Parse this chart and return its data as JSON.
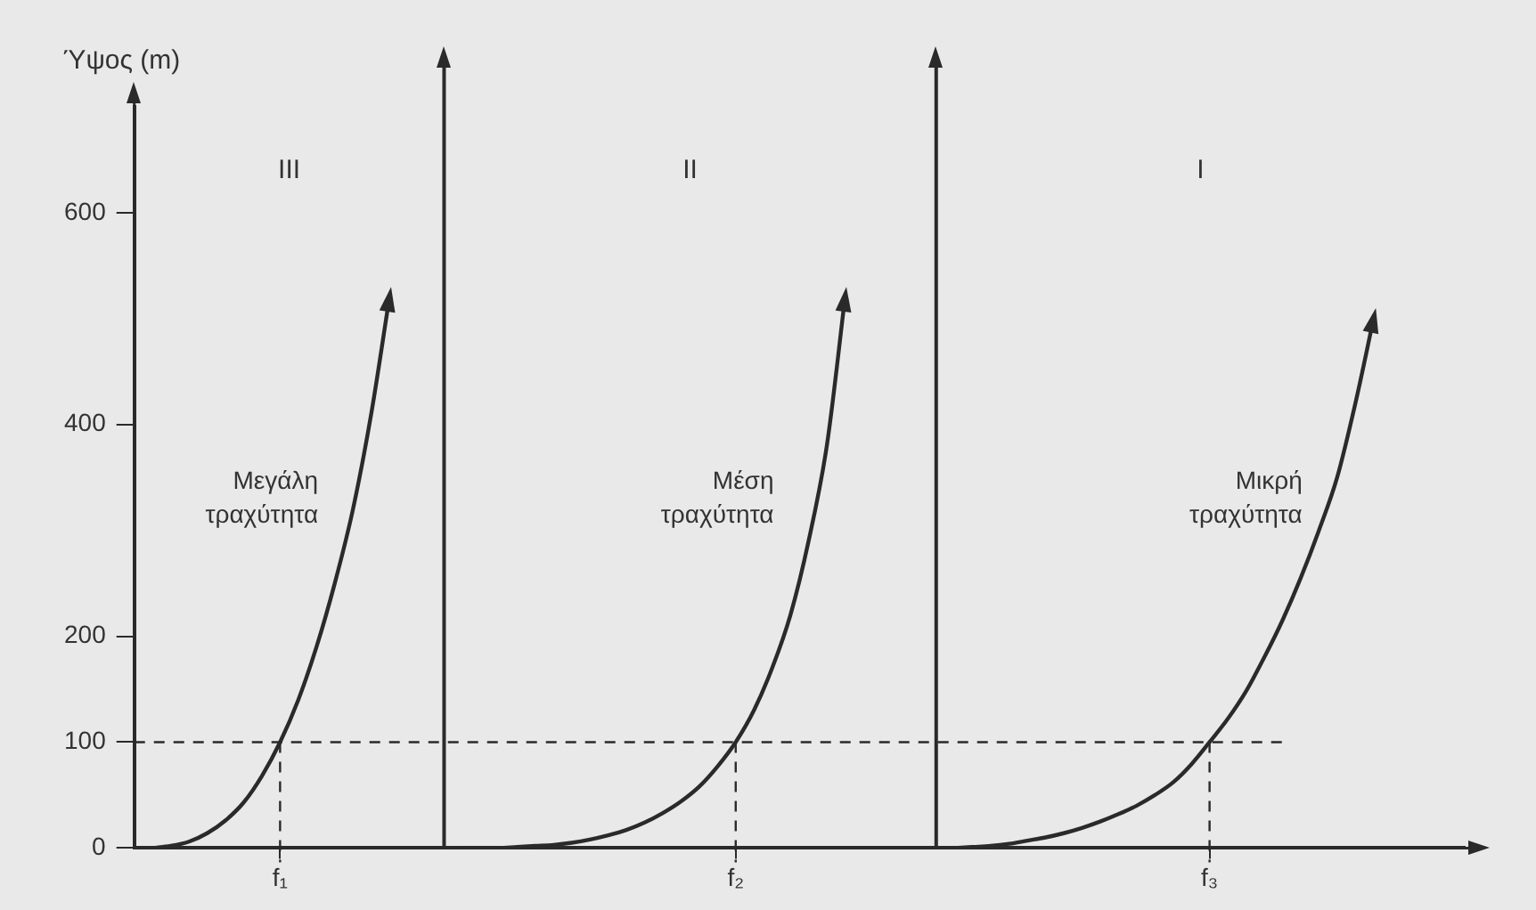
{
  "chart_data": {
    "type": "line",
    "ylabel": "Ύψος (m)",
    "categories": [
      null,
      null,
      null,
      null,
      null,
      null,
      null,
      null,
      "f₁",
      null,
      null,
      null,
      null,
      null,
      null,
      null,
      null,
      null,
      null,
      null,
      null,
      null,
      null,
      null,
      null,
      null,
      null,
      null,
      null,
      null,
      null,
      null,
      null,
      "f₂",
      null,
      null,
      null,
      null,
      null,
      null,
      null,
      null,
      null,
      null,
      null,
      null,
      null,
      null,
      null,
      null,
      null,
      null,
      null,
      null,
      null,
      null,
      null,
      null,
      null,
      "f₃",
      null,
      null,
      null,
      null,
      null,
      null,
      null,
      null,
      null,
      null,
      null,
      null,
      null,
      null
    ],
    "ylim": [
      0,
      700
    ],
    "yticks": [
      0,
      100,
      200,
      400,
      600
    ],
    "series": [
      {
        "name": "Μεγάλη τραχύτητα",
        "color": "#2a2a2a",
        "values": [
          null,
          0,
          2,
          6,
          14,
          26,
          43,
          68,
          100,
          140,
          190,
          250,
          320,
          410,
          520,
          null,
          null,
          null,
          null,
          null,
          null,
          null,
          null,
          null,
          null,
          null,
          null,
          null,
          null,
          null,
          null,
          null,
          null,
          null,
          null,
          null,
          null,
          null,
          null,
          null,
          null,
          null,
          null,
          null,
          null,
          null,
          null,
          null,
          null,
          null,
          null,
          null,
          null,
          null,
          null,
          null,
          null,
          null,
          null,
          null,
          null,
          null,
          null,
          null,
          null,
          null,
          null,
          null,
          null,
          null,
          null,
          null,
          null,
          null
        ]
      },
      {
        "name": "Μέση τραχύτητα",
        "color": "#2a2a2a",
        "values": [
          null,
          null,
          null,
          null,
          null,
          null,
          null,
          null,
          null,
          null,
          null,
          null,
          null,
          null,
          null,
          null,
          null,
          null,
          0,
          0,
          0,
          1,
          2,
          3,
          5,
          8,
          12,
          17,
          24,
          33,
          44,
          58,
          77,
          100,
          130,
          170,
          220,
          290,
          380,
          520,
          null,
          null,
          null,
          null,
          null,
          null,
          null,
          null,
          null,
          null,
          null,
          null,
          null,
          null,
          null,
          null,
          null,
          null,
          null,
          null,
          null,
          null,
          null,
          null,
          null,
          null,
          null,
          null,
          null,
          null,
          null,
          null,
          null,
          null
        ]
      },
      {
        "name": "Μικρή τραχύτητα",
        "color": "#2a2a2a",
        "values": [
          null,
          null,
          null,
          null,
          null,
          null,
          null,
          null,
          null,
          null,
          null,
          null,
          null,
          null,
          null,
          null,
          null,
          null,
          null,
          null,
          null,
          null,
          null,
          null,
          null,
          null,
          null,
          null,
          null,
          null,
          null,
          null,
          null,
          null,
          null,
          null,
          null,
          null,
          null,
          null,
          null,
          null,
          null,
          null,
          null,
          0,
          1,
          2,
          4,
          7,
          10,
          14,
          19,
          25,
          32,
          40,
          50,
          62,
          79,
          100,
          122,
          148,
          180,
          215,
          255,
          300,
          350,
          420,
          500,
          null,
          null,
          null,
          null,
          null
        ]
      }
    ],
    "annotations": [
      "III",
      "II",
      "I"
    ],
    "ref_lines": [
      {
        "axis": "y",
        "value": 100,
        "line_style": "dashed"
      },
      {
        "axis": "x",
        "value": "f₁",
        "line_style": "dashed"
      },
      {
        "axis": "x",
        "value": "f₂",
        "line_style": "dashed"
      },
      {
        "axis": "x",
        "value": "f₃",
        "line_style": "dashed"
      }
    ],
    "marker": "none",
    "line_style": "solid"
  }
}
